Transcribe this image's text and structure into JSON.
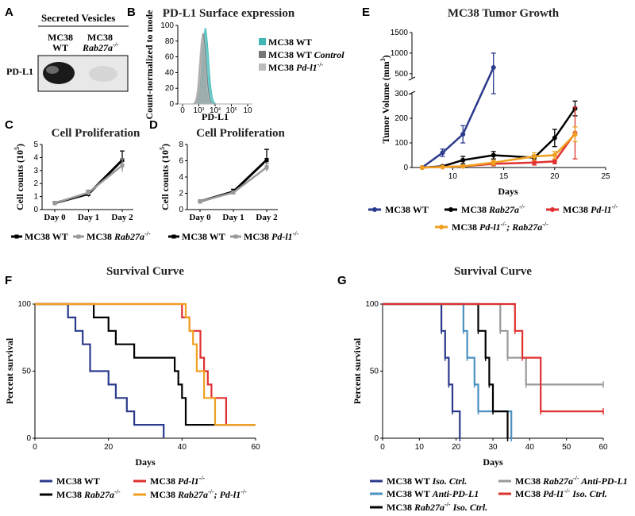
{
  "panels": {
    "a": "A",
    "b": "B",
    "c": "C",
    "d": "D",
    "e": "E",
    "f": "F",
    "g": "G"
  },
  "western": {
    "title": "Secreted Vesicles",
    "col1": "MC38",
    "col1b": "WT",
    "col2": "MC38",
    "col2b": "Rab27a",
    "col2sup": "-/-",
    "row": "PD-L1"
  },
  "colors": {
    "wt": "#2a3a8c",
    "rab": "#000000",
    "pdl1": "#e03030",
    "dko": "#f0a020",
    "iso_wt": "#2a3a8c",
    "anti_wt": "#4a90c0",
    "iso_rab": "#000000",
    "anti_rab": "#999999",
    "iso_pd": "#e03030",
    "flow_wt": "#40b8b8",
    "flow_ctrl": "#777777",
    "flow_pd": "#bbbbbb"
  },
  "chart_data": [
    {
      "id": "B",
      "type": "area",
      "title": "PD-L1 Surface expression",
      "xlabel": "PD-L1",
      "ylabel": "Count-normalized to mode",
      "xticks": [
        "0",
        "10",
        "10",
        "10",
        "10"
      ],
      "xtick_sups": [
        "",
        "3",
        "4",
        "5",
        ""
      ],
      "yticks": [
        "0",
        "20",
        "40",
        "60",
        "80",
        "100"
      ],
      "ylim": [
        0,
        100
      ],
      "legend": [
        {
          "name": "MC38 WT",
          "italic": ""
        },
        {
          "name": "MC38 WT ",
          "italic": "Control"
        },
        {
          "name": "MC38 ",
          "italic": "Pd-l1",
          "sup": "-/-"
        }
      ],
      "curves": [
        {
          "name": "flow_wt",
          "peak": 97,
          "center": 0.37,
          "width": 0.06
        },
        {
          "name": "flow_ctrl",
          "peak": 90,
          "center": 0.34,
          "width": 0.055
        },
        {
          "name": "flow_pd",
          "peak": 88,
          "center": 0.33,
          "width": 0.055
        }
      ]
    },
    {
      "id": "C",
      "type": "line",
      "title": "Cell Proliferation",
      "ylabel": "Cell counts (10",
      "ylabel_sup": "5",
      "ylabel_end": ")",
      "categories": [
        "Day 0",
        "Day 1",
        "Day 2"
      ],
      "yticks": [
        "0",
        "1",
        "2",
        "3",
        "4",
        "5"
      ],
      "ylim": [
        0,
        5
      ],
      "series": [
        {
          "name": "MC38 WT",
          "values": [
            0.5,
            1.2,
            3.8
          ],
          "err": [
            0.05,
            0.2,
            0.7
          ]
        },
        {
          "name": "MC38 Rab27a",
          "values": [
            0.5,
            1.3,
            3.4
          ],
          "err": [
            0.05,
            0.2,
            0.5
          ]
        }
      ],
      "legend": [
        {
          "name": "MC38 WT",
          "italic": ""
        },
        {
          "name": "MC38 ",
          "italic": "Rab27a",
          "sup": "-/-"
        }
      ]
    },
    {
      "id": "D",
      "type": "line",
      "title": "Cell Proliferation",
      "ylabel": "Cell counts (10",
      "ylabel_sup": "5",
      "ylabel_end": ")",
      "categories": [
        "Day 0",
        "Day 1",
        "Day 2"
      ],
      "yticks": [
        "0",
        "2",
        "4",
        "6",
        "8"
      ],
      "ylim": [
        0,
        8
      ],
      "series": [
        {
          "name": "MC38 WT",
          "values": [
            1,
            2.2,
            6.1
          ],
          "err": [
            0.05,
            0.3,
            1.3
          ]
        },
        {
          "name": "MC38 Pd-l1",
          "values": [
            1,
            2.1,
            5.2
          ],
          "err": [
            0.05,
            0.2,
            0.5
          ]
        }
      ],
      "legend": [
        {
          "name": "MC38 WT",
          "italic": ""
        },
        {
          "name": "MC38 ",
          "italic": "Pd-l1",
          "sup": "-/-"
        }
      ]
    },
    {
      "id": "E",
      "type": "line",
      "title": "MC38 Tumor Growth",
      "xlabel": "Days",
      "ylabel": "Tumor Volume (mm",
      "ylabel_sup": "3",
      "ylabel_end": ")",
      "xticks": [
        "10",
        "15",
        "20",
        "25"
      ],
      "yticks_low": [
        "0",
        "100",
        "200",
        "300"
      ],
      "yticks_high": [
        "500",
        "1000",
        "1500"
      ],
      "xlim": [
        6,
        25
      ],
      "series": [
        {
          "name": "MC38 WT",
          "color": "wt",
          "x": [
            7,
            9,
            11,
            14
          ],
          "values": [
            0,
            60,
            135,
            650
          ],
          "err": [
            0,
            15,
            35,
            350
          ]
        },
        {
          "name": "MC38 Rab27a",
          "color": "rab",
          "x": [
            7,
            9,
            11,
            14,
            18,
            20,
            22
          ],
          "values": [
            0,
            5,
            30,
            50,
            40,
            120,
            240
          ],
          "err": [
            0,
            3,
            15,
            15,
            10,
            35,
            30
          ]
        },
        {
          "name": "MC38 Pd-l1",
          "color": "pdl1",
          "x": [
            7,
            9,
            11,
            14,
            18,
            20,
            22
          ],
          "values": [
            0,
            2,
            5,
            15,
            20,
            25,
            140
          ],
          "err": [
            0,
            2,
            3,
            8,
            10,
            10,
            105
          ]
        },
        {
          "name": "MC38 Pd-l1 Rab27a",
          "color": "dko",
          "x": [
            7,
            9,
            11,
            14,
            18,
            20,
            22
          ],
          "values": [
            0,
            2,
            5,
            20,
            45,
            50,
            135
          ],
          "err": [
            0,
            2,
            3,
            10,
            15,
            15,
            30
          ]
        }
      ],
      "legend": [
        {
          "name": "MC38 WT",
          "color": "wt"
        },
        {
          "name": "MC38 ",
          "italic": "Rab27a",
          "sup": "-/-",
          "color": "rab"
        },
        {
          "name": "MC38 ",
          "italic": "Pd-l1",
          "sup": "-/-",
          "color": "pdl1"
        },
        {
          "name": "MC38 ",
          "italic": "Pd-l1",
          "sup": "-/-",
          "italic2": "; Rab27a",
          "sup2": "-/-",
          "color": "dko"
        }
      ]
    },
    {
      "id": "F",
      "type": "line",
      "title": "Survival Curve",
      "xlabel": "Days",
      "ylabel": "Percent survival",
      "xticks": [
        "0",
        "20",
        "40",
        "60"
      ],
      "yticks": [
        "0",
        "50",
        "100"
      ],
      "xlim": [
        0,
        60
      ],
      "ylim": [
        0,
        100
      ],
      "series": [
        {
          "name": "MC38 WT",
          "color": "wt",
          "x": [
            0,
            9,
            11,
            13,
            15,
            20,
            22,
            25,
            27,
            35
          ],
          "values": [
            100,
            90,
            80,
            70,
            50,
            40,
            30,
            20,
            10,
            0
          ]
        },
        {
          "name": "MC38 Rab27a",
          "color": "rab",
          "x": [
            0,
            9,
            16,
            20,
            22,
            27,
            38,
            39,
            40,
            41,
            60
          ],
          "values": [
            100,
            100,
            90,
            80,
            70,
            60,
            50,
            40,
            30,
            10,
            10
          ]
        },
        {
          "name": "MC38 Pd-l1",
          "color": "pdl1",
          "x": [
            0,
            16,
            33,
            40,
            42,
            45,
            46,
            47,
            48,
            52,
            60
          ],
          "values": [
            100,
            100,
            100,
            90,
            80,
            60,
            50,
            40,
            30,
            10,
            10
          ]
        },
        {
          "name": "MC38 Rab27a Pd-l1",
          "color": "dko",
          "x": [
            0,
            16,
            33,
            41,
            42,
            43,
            44,
            46,
            49,
            60
          ],
          "values": [
            100,
            100,
            100,
            90,
            80,
            70,
            50,
            30,
            10,
            10
          ]
        }
      ],
      "legend": [
        {
          "name": "MC38 WT",
          "color": "wt"
        },
        {
          "name": "MC38 ",
          "italic": "Pd-l1",
          "sup": "-/-",
          "color": "pdl1"
        },
        {
          "name": "MC38 ",
          "italic": "Rab27a",
          "sup": "-/-",
          "color": "rab"
        },
        {
          "name": "MC38 ",
          "italic": "Rab27a",
          "sup": "-/-",
          "italic2": "; Pd-l1",
          "sup2": "-/-",
          "color": "dko"
        }
      ]
    },
    {
      "id": "G",
      "type": "line",
      "title": "Survival Curve",
      "xlabel": "Days",
      "ylabel": "Percent survival",
      "xticks": [
        "0",
        "10",
        "20",
        "30",
        "40",
        "50",
        "60"
      ],
      "yticks": [
        "0",
        "50",
        "100"
      ],
      "xlim": [
        0,
        60
      ],
      "ylim": [
        0,
        100
      ],
      "series": [
        {
          "name": "MC38 WT Iso. Ctrl.",
          "color": "iso_wt",
          "x": [
            0,
            16,
            17,
            18,
            19,
            21
          ],
          "values": [
            100,
            80,
            60,
            40,
            20,
            0
          ]
        },
        {
          "name": "MC38 WT Anti-PD-L1",
          "color": "anti_wt",
          "x": [
            0,
            22,
            23,
            25,
            26,
            35
          ],
          "values": [
            100,
            80,
            60,
            40,
            20,
            0
          ]
        },
        {
          "name": "MC38 Rab27a Iso. Ctrl.",
          "color": "iso_rab",
          "x": [
            0,
            26,
            28,
            29,
            30,
            34
          ],
          "values": [
            100,
            80,
            60,
            40,
            20,
            0
          ]
        },
        {
          "name": "MC38 Rab27a Anti-PD-L1",
          "color": "anti_rab",
          "x": [
            0,
            32,
            34,
            39,
            60
          ],
          "values": [
            100,
            80,
            60,
            40,
            40
          ]
        },
        {
          "name": "MC38 Pd-l1 Iso. Ctrl.",
          "color": "iso_pd",
          "x": [
            0,
            36,
            38,
            43,
            60
          ],
          "values": [
            100,
            80,
            60,
            20,
            20
          ]
        }
      ],
      "legend": [
        {
          "name": "MC38 WT ",
          "italic": "Iso. Ctrl.",
          "color": "iso_wt"
        },
        {
          "name": "MC38 ",
          "italic": "Rab27a",
          "sup": "-/-",
          "italic2": " Anti-PD-L1",
          "color": "anti_rab"
        },
        {
          "name": "MC38 WT ",
          "italic": "Anti-PD-L1",
          "color": "anti_wt"
        },
        {
          "name": "MC38 ",
          "italic": "Pd-l1",
          "sup": "-/-",
          "italic2": " Iso. Ctrl.",
          "color": "iso_pd"
        },
        {
          "name": "MC38 ",
          "italic": "Rab27a",
          "sup": "-/-",
          "italic2": " Iso. Ctrl.",
          "color": "iso_rab"
        }
      ]
    }
  ]
}
